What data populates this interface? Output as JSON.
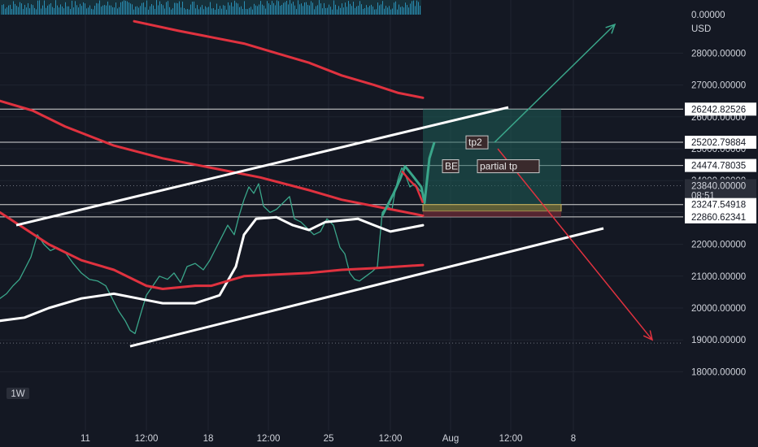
{
  "chart_data": {
    "type": "line",
    "title": "",
    "interval_badge": "1W",
    "currency": "USD",
    "top_indicator_value": "0.00000",
    "ylim": [
      17500,
      29000
    ],
    "y_ticks": [
      18000,
      19000,
      20000,
      21000,
      22000,
      23000,
      24000,
      25000,
      26000,
      27000,
      28000
    ],
    "y_tick_labels": [
      "18000.00000",
      "19000.00000",
      "20000.00000",
      "21000.00000",
      "22000.00000",
      "23000.00000",
      "24000.00000",
      "25000.00000",
      "26000.00000",
      "27000.00000",
      "28000.00000"
    ],
    "x_ticks": [
      "11",
      "12:00",
      "18",
      "12:00",
      "25",
      "12:00",
      "Aug",
      "12:00",
      "8"
    ],
    "price_tags": [
      {
        "label": "26242.82526",
        "value": 26242.8,
        "style": "level"
      },
      {
        "label": "25202.79884",
        "value": 25202.8,
        "style": "level"
      },
      {
        "label": "24474.78035",
        "value": 24474.8,
        "style": "level"
      },
      {
        "label": "23840.00000",
        "sub": "08:51",
        "value": 23840,
        "style": "current"
      },
      {
        "label": "23247.54918",
        "value": 23247.5,
        "style": "level"
      },
      {
        "label": "22860.62341",
        "value": 22860.6,
        "style": "level"
      }
    ],
    "series": [
      {
        "values": [
          [
            0,
            20300
          ],
          [
            8,
            20450
          ],
          [
            16,
            20700
          ],
          [
            24,
            20900
          ],
          [
            30,
            21200
          ],
          [
            38,
            21600
          ],
          [
            46,
            22300
          ],
          [
            54,
            22000
          ],
          [
            62,
            21800
          ],
          [
            70,
            21900
          ],
          [
            80,
            21750
          ],
          [
            90,
            21400
          ],
          [
            100,
            21100
          ],
          [
            110,
            20900
          ],
          [
            120,
            20850
          ],
          [
            130,
            20700
          ],
          [
            138,
            20300
          ],
          [
            146,
            19900
          ],
          [
            154,
            19600
          ],
          [
            160,
            19300
          ],
          [
            166,
            19200
          ],
          [
            174,
            19900
          ],
          [
            180,
            20400
          ],
          [
            188,
            20700
          ],
          [
            196,
            21000
          ],
          [
            206,
            20900
          ],
          [
            214,
            21100
          ],
          [
            222,
            20800
          ],
          [
            230,
            21300
          ],
          [
            240,
            21400
          ],
          [
            250,
            21200
          ],
          [
            258,
            21500
          ],
          [
            266,
            21900
          ],
          [
            272,
            22200
          ],
          [
            280,
            22600
          ],
          [
            288,
            22300
          ],
          [
            294,
            22900
          ],
          [
            300,
            23400
          ],
          [
            306,
            23800
          ],
          [
            312,
            23600
          ],
          [
            318,
            23900
          ],
          [
            324,
            23200
          ],
          [
            332,
            23000
          ],
          [
            340,
            23100
          ],
          [
            348,
            23300
          ],
          [
            356,
            23500
          ],
          [
            362,
            22800
          ],
          [
            370,
            22700
          ],
          [
            378,
            22500
          ],
          [
            386,
            22300
          ],
          [
            394,
            22400
          ],
          [
            402,
            22800
          ],
          [
            410,
            22600
          ],
          [
            418,
            21900
          ],
          [
            424,
            21700
          ],
          [
            430,
            21100
          ],
          [
            436,
            20900
          ],
          [
            442,
            20850
          ],
          [
            450,
            21000
          ],
          [
            458,
            21150
          ],
          [
            464,
            21300
          ],
          [
            470,
            23000
          ],
          [
            476,
            23200
          ],
          [
            482,
            23100
          ],
          [
            486,
            23700
          ],
          [
            490,
            24100
          ],
          [
            494,
            24400
          ],
          [
            498,
            24200
          ],
          [
            504,
            23800
          ],
          [
            510,
            23900
          ],
          [
            516,
            23700
          ],
          [
            520,
            23600
          ]
        ]
      },
      {
        "values": [
          [
            0,
            19600
          ],
          [
            30,
            19700
          ],
          [
            60,
            20000
          ],
          [
            100,
            20300
          ],
          [
            140,
            20450
          ],
          [
            180,
            20250
          ],
          [
            200,
            20150
          ],
          [
            240,
            20150
          ],
          [
            270,
            20400
          ],
          [
            290,
            21300
          ],
          [
            300,
            22300
          ],
          [
            315,
            22800
          ],
          [
            340,
            22850
          ],
          [
            360,
            22600
          ],
          [
            380,
            22450
          ],
          [
            400,
            22700
          ],
          [
            420,
            22750
          ],
          [
            440,
            22800
          ],
          [
            460,
            22600
          ],
          [
            480,
            22400
          ],
          [
            500,
            22500
          ],
          [
            520,
            22600
          ]
        ]
      },
      {
        "values": [
          [
            0,
            23000
          ],
          [
            30,
            22500
          ],
          [
            60,
            22000
          ],
          [
            100,
            21500
          ],
          [
            140,
            21200
          ],
          [
            180,
            20700
          ],
          [
            200,
            20600
          ],
          [
            240,
            20700
          ],
          [
            260,
            20700
          ],
          [
            300,
            21000
          ],
          [
            340,
            21050
          ],
          [
            380,
            21100
          ],
          [
            420,
            21200
          ],
          [
            460,
            21250
          ],
          [
            490,
            21300
          ],
          [
            520,
            21350
          ]
        ]
      },
      {
        "values": [
          [
            0,
            26500
          ],
          [
            40,
            26200
          ],
          [
            80,
            25700
          ],
          [
            140,
            25100
          ],
          [
            200,
            24700
          ],
          [
            260,
            24400
          ],
          [
            320,
            24100
          ],
          [
            380,
            23700
          ],
          [
            420,
            23400
          ],
          [
            460,
            23200
          ],
          [
            490,
            23050
          ],
          [
            520,
            22900
          ]
        ]
      },
      {
        "values": [
          [
            165,
            29000
          ],
          [
            220,
            28700
          ],
          [
            260,
            28500
          ],
          [
            300,
            28300
          ],
          [
            340,
            28000
          ],
          [
            380,
            27700
          ],
          [
            420,
            27300
          ],
          [
            460,
            27000
          ],
          [
            490,
            26750
          ],
          [
            520,
            26600
          ]
        ]
      }
    ],
    "channel_upper": [
      [
        20,
        22600
      ],
      [
        625,
        26300
      ]
    ],
    "channel_lower": [
      [
        160,
        18800
      ],
      [
        742,
        22500
      ]
    ],
    "horizontal_levels": [
      26242.8,
      25202.8,
      24474.8,
      23247.5,
      22860.6
    ],
    "dotted_levels": [
      23840,
      18900
    ],
    "position_box": {
      "x_start": 520,
      "x_end": 690,
      "top": 26242.8,
      "mid_top": 23247.5,
      "mid_bottom": 23040,
      "bottom": 22860.6
    },
    "projection_up": [
      [
        608,
        25200
      ],
      [
        756,
        28900
      ]
    ],
    "projection_down": [
      [
        612,
        25000
      ],
      [
        802,
        19000
      ]
    ],
    "labels": [
      {
        "text": "tp2",
        "x": 585,
        "value": 25200
      },
      {
        "text": "BE",
        "x": 556,
        "value": 24450
      },
      {
        "text": "partial tp",
        "x": 599,
        "value": 24450
      }
    ],
    "grid": true,
    "legend": "none"
  }
}
